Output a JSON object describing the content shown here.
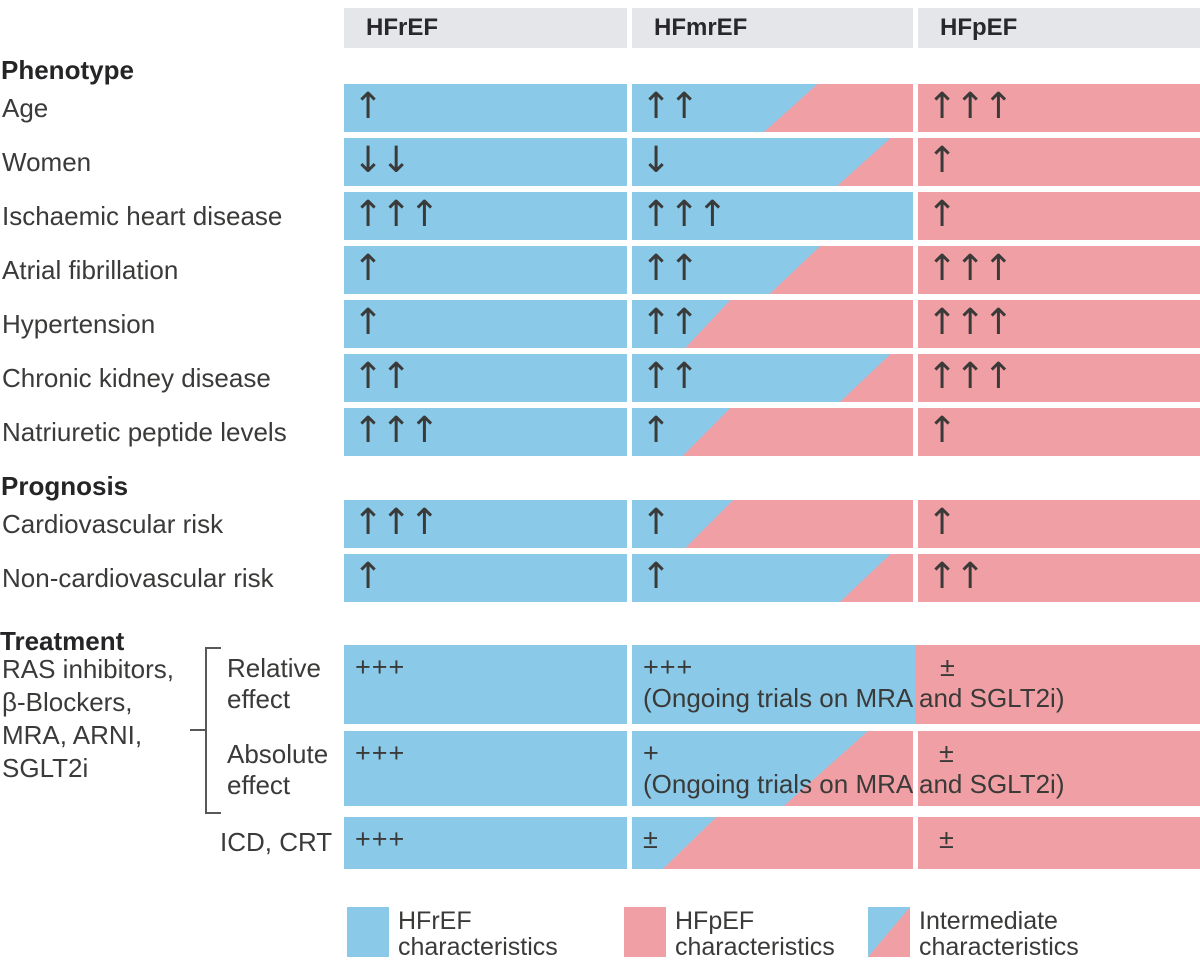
{
  "colors": {
    "blue": "#8bc9e8",
    "pink": "#f0a0a5",
    "header_bg": "#e4e6e9",
    "text": "#3a3a39",
    "title": "#252527",
    "bracket_line": "#57585a"
  },
  "header": {
    "columns": [
      "HFrEF",
      "HFmrEF",
      "HFpEF"
    ]
  },
  "sections": [
    {
      "title": "Phenotype",
      "rows": [
        {
          "label": "Age",
          "cells": [
            {
              "fill": "blue",
              "symbol": "↑"
            },
            {
              "fill": "split",
              "symbol": "↑↑",
              "blue_top_pct": 66,
              "blue_bottom_pct": 47
            },
            {
              "fill": "pink",
              "symbol": "↑↑↑"
            }
          ]
        },
        {
          "label": "Women",
          "cells": [
            {
              "fill": "blue",
              "symbol": "↓↓"
            },
            {
              "fill": "split",
              "symbol": "↓",
              "blue_top_pct": 92,
              "blue_bottom_pct": 73
            },
            {
              "fill": "pink",
              "symbol": "↑"
            }
          ]
        },
        {
          "label": "Ischaemic heart disease",
          "cells": [
            {
              "fill": "blue",
              "symbol": "↑↑↑"
            },
            {
              "fill": "blue",
              "symbol": "↑↑↑"
            },
            {
              "fill": "pink",
              "symbol": "↑"
            }
          ]
        },
        {
          "label": "Atrial fibrillation",
          "cells": [
            {
              "fill": "blue",
              "symbol": "↑"
            },
            {
              "fill": "split",
              "symbol": "↑↑",
              "blue_top_pct": 67,
              "blue_bottom_pct": 49
            },
            {
              "fill": "pink",
              "symbol": "↑↑↑"
            }
          ]
        },
        {
          "label": "Hypertension",
          "cells": [
            {
              "fill": "blue",
              "symbol": "↑"
            },
            {
              "fill": "split",
              "symbol": "↑↑",
              "blue_top_pct": 35,
              "blue_bottom_pct": 19
            },
            {
              "fill": "pink",
              "symbol": "↑↑↑"
            }
          ]
        },
        {
          "label": "Chronic kidney disease",
          "cells": [
            {
              "fill": "blue",
              "symbol": "↑↑"
            },
            {
              "fill": "split",
              "symbol": "↑↑",
              "blue_top_pct": 92,
              "blue_bottom_pct": 74
            },
            {
              "fill": "pink",
              "symbol": "↑↑↑"
            }
          ]
        },
        {
          "label": "Natriuretic peptide levels",
          "cells": [
            {
              "fill": "blue",
              "symbol": "↑↑↑"
            },
            {
              "fill": "split",
              "symbol": "↑",
              "blue_top_pct": 35,
              "blue_bottom_pct": 18
            },
            {
              "fill": "pink",
              "symbol": "↑"
            }
          ]
        }
      ]
    },
    {
      "title": "Prognosis",
      "rows": [
        {
          "label": "Cardiovascular risk",
          "cells": [
            {
              "fill": "blue",
              "symbol": "↑↑↑"
            },
            {
              "fill": "split",
              "symbol": "↑",
              "blue_top_pct": 36,
              "blue_bottom_pct": 19
            },
            {
              "fill": "pink",
              "symbol": "↑"
            }
          ]
        },
        {
          "label": "Non-cardiovascular risk",
          "cells": [
            {
              "fill": "blue",
              "symbol": "↑"
            },
            {
              "fill": "split",
              "symbol": "↑",
              "blue_top_pct": 92,
              "blue_bottom_pct": 74
            },
            {
              "fill": "pink",
              "symbol": "↑↑"
            }
          ]
        }
      ]
    },
    {
      "title": "Treatment",
      "drug_group_lines": [
        "RAS inhibitors,",
        "β-Blockers,",
        "MRA, ARNI,",
        "SGLT2i"
      ],
      "rows": [
        {
          "label": "Relative effect",
          "merged": true,
          "cells": [
            {
              "fill": "blue",
              "symbol": "+++"
            },
            {
              "fill": "blue",
              "symbol": "+++",
              "caption": "(Ongoing trials on MRA and SGLT2i)"
            },
            {
              "fill": "pink",
              "symbol": "±"
            }
          ]
        },
        {
          "label": "Absolute effect",
          "cells": [
            {
              "fill": "blue",
              "symbol": "+++"
            },
            {
              "fill": "split",
              "symbol": "+",
              "caption": "(Ongoing trials on MRA and SGLT2i)",
              "blue_top_pct": 84,
              "blue_bottom_pct": 54
            },
            {
              "fill": "pink",
              "symbol": "±"
            }
          ]
        },
        {
          "label": "ICD, CRT",
          "cells": [
            {
              "fill": "blue",
              "symbol": "+++"
            },
            {
              "fill": "split",
              "symbol": "±",
              "blue_top_pct": 30,
              "blue_bottom_pct": 11
            },
            {
              "fill": "pink",
              "symbol": "±"
            }
          ]
        }
      ]
    }
  ],
  "legend": [
    {
      "swatch": "blue",
      "lines": [
        "HFrEF",
        "characteristics"
      ]
    },
    {
      "swatch": "pink",
      "lines": [
        "HFpEF",
        "characteristics"
      ]
    },
    {
      "swatch": "split",
      "lines": [
        "Intermediate",
        "characteristics"
      ]
    }
  ]
}
